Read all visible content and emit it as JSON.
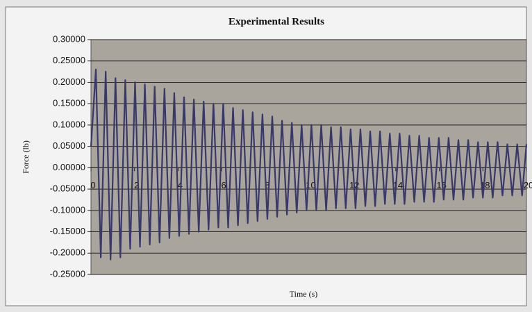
{
  "chart_data": {
    "type": "line",
    "title": "Experimental Results",
    "x_label": "Time (s)",
    "y_label": "Force (lb)",
    "xlim": [
      0,
      20
    ],
    "xticks": [
      0,
      2,
      4,
      6,
      8,
      10,
      12,
      14,
      16,
      18,
      20
    ],
    "ylim": [
      -0.25,
      0.3
    ],
    "yticks": [
      {
        "value": -0.25,
        "label": "-0.25000"
      },
      {
        "value": -0.2,
        "label": "-0.20000"
      },
      {
        "value": -0.15,
        "label": "-0.15000"
      },
      {
        "value": -0.1,
        "label": "-0.10000"
      },
      {
        "value": -0.05,
        "label": "-0.05000"
      },
      {
        "value": 0,
        "label": "0.00000"
      },
      {
        "value": 0.05,
        "label": "0.05000"
      },
      {
        "value": 0.1,
        "label": "0.10000"
      },
      {
        "value": 0.15,
        "label": "0.15000"
      },
      {
        "value": 0.2,
        "label": "0.20000"
      },
      {
        "value": 0.25,
        "label": "0.25000"
      },
      {
        "value": 0.3,
        "label": "0.30000"
      }
    ],
    "grid": true,
    "plot_background": "#aaa59c",
    "x": [
      0,
      0.225,
      0.45,
      0.675,
      0.9,
      1.125,
      1.35,
      1.575,
      1.8,
      2.025,
      2.25,
      2.475,
      2.7,
      2.925,
      3.15,
      3.375,
      3.6,
      3.825,
      4.05,
      4.275,
      4.5,
      4.725,
      4.95,
      5.175,
      5.4,
      5.625,
      5.85,
      6.075,
      6.3,
      6.525,
      6.75,
      6.975,
      7.2,
      7.425,
      7.65,
      7.875,
      8.1,
      8.325,
      8.55,
      8.775,
      9,
      9.225,
      9.45,
      9.675,
      9.9,
      10.125,
      10.35,
      10.575,
      10.8,
      11.025,
      11.25,
      11.475,
      11.7,
      11.925,
      12.15,
      12.375,
      12.6,
      12.825,
      13.05,
      13.275,
      13.5,
      13.725,
      13.95,
      14.175,
      14.4,
      14.625,
      14.85,
      15.075,
      15.3,
      15.525,
      15.75,
      15.975,
      16.2,
      16.425,
      16.65,
      16.875,
      17.1,
      17.325,
      17.55,
      17.775,
      18,
      18.225,
      18.45,
      18.675,
      18.9,
      19.125,
      19.35,
      19.575,
      19.8,
      20
    ],
    "series": [
      {
        "name": "Force",
        "color": "#38386a",
        "values": [
          0.05,
          0.23,
          -0.21,
          0.225,
          -0.215,
          0.21,
          -0.21,
          0.205,
          -0.19,
          0.2,
          -0.185,
          0.195,
          -0.18,
          0.19,
          -0.175,
          0.185,
          -0.165,
          0.175,
          -0.16,
          0.165,
          -0.155,
          0.16,
          -0.15,
          0.155,
          -0.145,
          0.15,
          -0.14,
          0.15,
          -0.14,
          0.14,
          -0.135,
          0.135,
          -0.13,
          0.13,
          -0.125,
          0.125,
          -0.12,
          0.12,
          -0.115,
          0.11,
          -0.11,
          0.105,
          -0.105,
          0.1,
          -0.1,
          0.1,
          -0.1,
          0.1,
          -0.1,
          0.095,
          -0.095,
          0.095,
          -0.095,
          0.09,
          -0.095,
          0.09,
          -0.09,
          0.085,
          -0.09,
          0.085,
          -0.085,
          0.08,
          -0.085,
          0.08,
          -0.085,
          0.075,
          -0.08,
          0.075,
          -0.08,
          0.07,
          -0.08,
          0.07,
          -0.075,
          0.07,
          -0.075,
          0.065,
          -0.075,
          0.065,
          -0.07,
          0.06,
          -0.07,
          0.06,
          -0.07,
          0.06,
          -0.065,
          0.055,
          -0.065,
          0.055,
          -0.065,
          0.055
        ]
      }
    ]
  }
}
